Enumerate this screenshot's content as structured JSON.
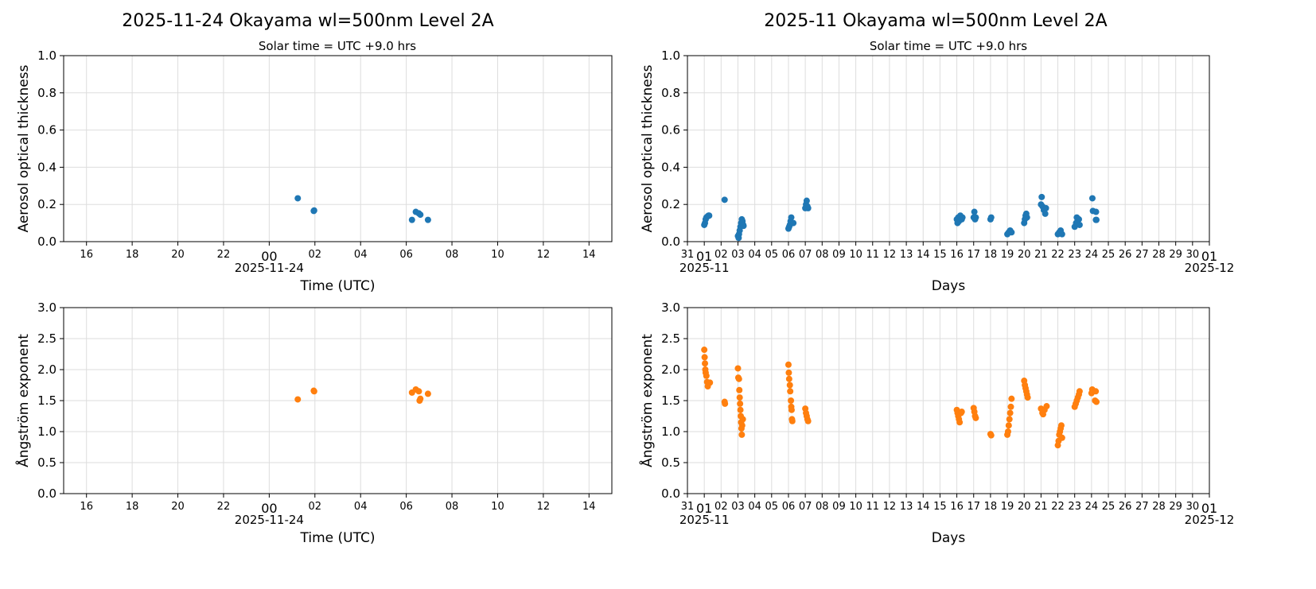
{
  "colors": {
    "aod": "#1f77b4",
    "angstrom": "#ff7f0e",
    "grid": "#dddddd"
  },
  "chart_data": [
    {
      "type": "scatter",
      "title": "2025-11-24  Okayama  wl=500nm  Level 2A",
      "subtitle": "Solar time = UTC +9.0 hrs",
      "xlabel": "Time (UTC)",
      "ylabel": "Aerosol optical thickness",
      "xlim": [
        "2025-11-23T15:00",
        "2025-11-24T15:00"
      ],
      "ylim": [
        0,
        1.0
      ],
      "yticks": [
        "0.0",
        "0.2",
        "0.4",
        "0.6",
        "0.8",
        "1.0"
      ],
      "xticks": [
        "16",
        "18",
        "20",
        "22",
        "00",
        "02",
        "04",
        "06",
        "08",
        "10",
        "12",
        "14"
      ],
      "xdate_label": "2025-11-24",
      "grid": true,
      "color": "#1f77b4",
      "points": [
        [
          "2025-11-24T01:15",
          0.233
        ],
        [
          "2025-11-24T01:57",
          0.165
        ],
        [
          "2025-11-24T01:58",
          0.168
        ],
        [
          "2025-11-24T06:15",
          0.117
        ],
        [
          "2025-11-24T06:25",
          0.16
        ],
        [
          "2025-11-24T06:33",
          0.152
        ],
        [
          "2025-11-24T06:37",
          0.145
        ],
        [
          "2025-11-24T06:57",
          0.117
        ]
      ]
    },
    {
      "type": "scatter",
      "title": "2025-11  Okayama  wl=500nm  Level 2A",
      "subtitle": "Solar time = UTC +9.0 hrs",
      "xlabel": "Days",
      "ylabel": "Aerosol optical thickness",
      "xlim": [
        "2025-10-31T00:00",
        "2025-12-01T00:00"
      ],
      "ylim": [
        0,
        1.0
      ],
      "yticks": [
        "0.0",
        "0.2",
        "0.4",
        "0.6",
        "0.8",
        "1.0"
      ],
      "xticks": [
        "31",
        "01",
        "02",
        "03",
        "04",
        "05",
        "06",
        "07",
        "08",
        "09",
        "10",
        "11",
        "12",
        "13",
        "14",
        "15",
        "16",
        "17",
        "18",
        "19",
        "20",
        "21",
        "22",
        "23",
        "24",
        "25",
        "26",
        "27",
        "28",
        "29",
        "30",
        "01"
      ],
      "xmonth_labels": [
        "2025-11",
        "2025-12"
      ],
      "grid": true,
      "color": "#1f77b4",
      "points": [
        [
          "2025-11-01T00:00",
          0.09
        ],
        [
          "2025-11-01T01:00",
          0.1
        ],
        [
          "2025-11-01T02:00",
          0.12
        ],
        [
          "2025-11-01T03:00",
          0.13
        ],
        [
          "2025-11-01T04:30",
          0.135
        ],
        [
          "2025-11-01T06:00",
          0.14
        ],
        [
          "2025-11-01T07:00",
          0.14
        ],
        [
          "2025-11-02T05:00",
          0.225
        ],
        [
          "2025-11-03T00:00",
          0.03
        ],
        [
          "2025-11-03T01:00",
          0.02
        ],
        [
          "2025-11-03T01:30",
          0.04
        ],
        [
          "2025-11-03T02:30",
          0.06
        ],
        [
          "2025-11-03T03:30",
          0.08
        ],
        [
          "2025-11-03T04:30",
          0.1
        ],
        [
          "2025-11-03T05:30",
          0.12
        ],
        [
          "2025-11-03T06:30",
          0.11
        ],
        [
          "2025-11-03T07:30",
          0.09
        ],
        [
          "2025-11-03T08:00",
          0.085
        ],
        [
          "2025-11-06T00:00",
          0.07
        ],
        [
          "2025-11-06T01:00",
          0.08
        ],
        [
          "2025-11-06T02:00",
          0.09
        ],
        [
          "2025-11-06T03:00",
          0.11
        ],
        [
          "2025-11-06T04:00",
          0.13
        ],
        [
          "2025-11-06T05:00",
          0.1
        ],
        [
          "2025-11-06T07:00",
          0.1
        ],
        [
          "2025-11-07T00:00",
          0.18
        ],
        [
          "2025-11-07T01:00",
          0.2
        ],
        [
          "2025-11-07T02:00",
          0.22
        ],
        [
          "2025-11-07T03:00",
          0.19
        ],
        [
          "2025-11-07T04:00",
          0.18
        ],
        [
          "2025-11-16T00:00",
          0.12
        ],
        [
          "2025-11-16T01:00",
          0.1
        ],
        [
          "2025-11-16T02:00",
          0.13
        ],
        [
          "2025-11-16T03:00",
          0.11
        ],
        [
          "2025-11-16T05:00",
          0.14
        ],
        [
          "2025-11-16T07:00",
          0.12
        ],
        [
          "2025-11-16T08:00",
          0.13
        ],
        [
          "2025-11-17T00:00",
          0.13
        ],
        [
          "2025-11-17T01:00",
          0.16
        ],
        [
          "2025-11-17T02:00",
          0.12
        ],
        [
          "2025-11-17T03:00",
          0.13
        ],
        [
          "2025-11-18T00:00",
          0.12
        ],
        [
          "2025-11-18T01:00",
          0.13
        ],
        [
          "2025-11-19T00:00",
          0.04
        ],
        [
          "2025-11-19T02:00",
          0.05
        ],
        [
          "2025-11-19T04:00",
          0.06
        ],
        [
          "2025-11-19T06:00",
          0.05
        ],
        [
          "2025-11-20T00:00",
          0.1
        ],
        [
          "2025-11-20T01:00",
          0.12
        ],
        [
          "2025-11-20T02:00",
          0.14
        ],
        [
          "2025-11-20T03:00",
          0.15
        ],
        [
          "2025-11-20T04:00",
          0.13
        ],
        [
          "2025-11-21T00:00",
          0.2
        ],
        [
          "2025-11-21T01:00",
          0.24
        ],
        [
          "2025-11-21T02:00",
          0.19
        ],
        [
          "2025-11-21T04:00",
          0.17
        ],
        [
          "2025-11-21T06:00",
          0.15
        ],
        [
          "2025-11-21T07:00",
          0.18
        ],
        [
          "2025-11-22T00:00",
          0.04
        ],
        [
          "2025-11-22T02:00",
          0.05
        ],
        [
          "2025-11-22T04:00",
          0.06
        ],
        [
          "2025-11-22T06:00",
          0.04
        ],
        [
          "2025-11-23T00:00",
          0.08
        ],
        [
          "2025-11-23T02:00",
          0.1
        ],
        [
          "2025-11-23T03:00",
          0.13
        ],
        [
          "2025-11-23T04:00",
          0.11
        ],
        [
          "2025-11-23T06:00",
          0.12
        ],
        [
          "2025-11-23T07:00",
          0.09
        ],
        [
          "2025-11-24T01:15",
          0.233
        ],
        [
          "2025-11-24T01:57",
          0.165
        ],
        [
          "2025-11-24T06:15",
          0.117
        ],
        [
          "2025-11-24T06:25",
          0.16
        ],
        [
          "2025-11-24T06:57",
          0.117
        ]
      ]
    },
    {
      "type": "scatter",
      "xlabel": "Time (UTC)",
      "ylabel": "Ångström exponent",
      "xlim": [
        "2025-11-23T15:00",
        "2025-11-24T15:00"
      ],
      "ylim": [
        0,
        3.0
      ],
      "yticks": [
        "0.0",
        "0.5",
        "1.0",
        "1.5",
        "2.0",
        "2.5",
        "3.0"
      ],
      "xticks": [
        "16",
        "18",
        "20",
        "22",
        "00",
        "02",
        "04",
        "06",
        "08",
        "10",
        "12",
        "14"
      ],
      "xdate_label": "2025-11-24",
      "grid": true,
      "color": "#ff7f0e",
      "points": [
        [
          "2025-11-24T01:15",
          1.52
        ],
        [
          "2025-11-24T01:57",
          1.66
        ],
        [
          "2025-11-24T01:58",
          1.65
        ],
        [
          "2025-11-24T06:15",
          1.63
        ],
        [
          "2025-11-24T06:25",
          1.68
        ],
        [
          "2025-11-24T06:33",
          1.65
        ],
        [
          "2025-11-24T06:35",
          1.5
        ],
        [
          "2025-11-24T06:37",
          1.53
        ],
        [
          "2025-11-24T06:57",
          1.61
        ]
      ]
    },
    {
      "type": "scatter",
      "xlabel": "Days",
      "ylabel": "Ångström exponent",
      "xlim": [
        "2025-10-31T00:00",
        "2025-12-01T00:00"
      ],
      "ylim": [
        0,
        3.0
      ],
      "yticks": [
        "0.0",
        "0.5",
        "1.0",
        "1.5",
        "2.0",
        "2.5",
        "3.0"
      ],
      "xticks": [
        "31",
        "01",
        "02",
        "03",
        "04",
        "05",
        "06",
        "07",
        "08",
        "09",
        "10",
        "11",
        "12",
        "13",
        "14",
        "15",
        "16",
        "17",
        "18",
        "19",
        "20",
        "21",
        "22",
        "23",
        "24",
        "25",
        "26",
        "27",
        "28",
        "29",
        "30",
        "01"
      ],
      "xmonth_labels": [
        "2025-11",
        "2025-12"
      ],
      "grid": true,
      "color": "#ff7f0e",
      "points": [
        [
          "2025-11-01T00:00",
          2.32
        ],
        [
          "2025-11-01T00:30",
          2.2
        ],
        [
          "2025-11-01T01:00",
          2.1
        ],
        [
          "2025-11-01T01:30",
          2.0
        ],
        [
          "2025-11-01T02:00",
          1.95
        ],
        [
          "2025-11-01T03:00",
          1.9
        ],
        [
          "2025-11-01T04:00",
          1.8
        ],
        [
          "2025-11-01T05:00",
          1.73
        ],
        [
          "2025-11-01T08:00",
          1.79
        ],
        [
          "2025-11-02T05:00",
          1.48
        ],
        [
          "2025-11-02T05:30",
          1.45
        ],
        [
          "2025-11-03T00:00",
          2.02
        ],
        [
          "2025-11-03T00:30",
          1.87
        ],
        [
          "2025-11-03T01:30",
          1.85
        ],
        [
          "2025-11-03T02:00",
          1.67
        ],
        [
          "2025-11-03T02:30",
          1.55
        ],
        [
          "2025-11-03T03:00",
          1.45
        ],
        [
          "2025-11-03T03:30",
          1.35
        ],
        [
          "2025-11-03T04:00",
          1.25
        ],
        [
          "2025-11-03T04:30",
          1.15
        ],
        [
          "2025-11-03T05:00",
          1.05
        ],
        [
          "2025-11-03T05:30",
          0.95
        ],
        [
          "2025-11-03T07:00",
          1.2
        ],
        [
          "2025-11-03T06:00",
          1.1
        ],
        [
          "2025-11-06T00:00",
          2.08
        ],
        [
          "2025-11-06T00:30",
          1.95
        ],
        [
          "2025-11-06T01:00",
          1.85
        ],
        [
          "2025-11-06T02:00",
          1.75
        ],
        [
          "2025-11-06T02:30",
          1.65
        ],
        [
          "2025-11-06T03:30",
          1.5
        ],
        [
          "2025-11-06T04:00",
          1.4
        ],
        [
          "2025-11-06T04:30",
          1.35
        ],
        [
          "2025-11-06T05:00",
          1.2
        ],
        [
          "2025-11-06T05:30",
          1.17
        ],
        [
          "2025-11-07T00:00",
          1.37
        ],
        [
          "2025-11-07T01:00",
          1.3
        ],
        [
          "2025-11-07T02:00",
          1.25
        ],
        [
          "2025-11-07T03:00",
          1.2
        ],
        [
          "2025-11-07T04:00",
          1.17
        ],
        [
          "2025-11-16T00:00",
          1.35
        ],
        [
          "2025-11-16T01:00",
          1.3
        ],
        [
          "2025-11-16T02:00",
          1.25
        ],
        [
          "2025-11-16T03:00",
          1.2
        ],
        [
          "2025-11-16T04:00",
          1.15
        ],
        [
          "2025-11-16T06:00",
          1.3
        ],
        [
          "2025-11-16T07:00",
          1.32
        ],
        [
          "2025-11-17T00:00",
          1.38
        ],
        [
          "2025-11-17T01:00",
          1.32
        ],
        [
          "2025-11-17T02:00",
          1.25
        ],
        [
          "2025-11-17T03:00",
          1.22
        ],
        [
          "2025-11-18T00:00",
          0.96
        ],
        [
          "2025-11-18T01:00",
          0.94
        ],
        [
          "2025-11-19T00:00",
          0.95
        ],
        [
          "2025-11-19T01:00",
          1.0
        ],
        [
          "2025-11-19T02:00",
          1.1
        ],
        [
          "2025-11-19T03:00",
          1.2
        ],
        [
          "2025-11-19T04:00",
          1.3
        ],
        [
          "2025-11-19T05:00",
          1.4
        ],
        [
          "2025-11-19T06:00",
          1.53
        ],
        [
          "2025-11-20T00:00",
          1.82
        ],
        [
          "2025-11-20T01:00",
          1.75
        ],
        [
          "2025-11-20T02:00",
          1.7
        ],
        [
          "2025-11-20T03:00",
          1.65
        ],
        [
          "2025-11-20T04:00",
          1.6
        ],
        [
          "2025-11-20T05:00",
          1.55
        ],
        [
          "2025-11-21T00:00",
          1.37
        ],
        [
          "2025-11-21T02:00",
          1.3
        ],
        [
          "2025-11-21T03:00",
          1.28
        ],
        [
          "2025-11-21T05:00",
          1.35
        ],
        [
          "2025-11-21T08:00",
          1.41
        ],
        [
          "2025-11-22T00:00",
          0.78
        ],
        [
          "2025-11-22T01:00",
          0.85
        ],
        [
          "2025-11-22T02:00",
          0.95
        ],
        [
          "2025-11-22T03:00",
          1.0
        ],
        [
          "2025-11-22T04:00",
          1.05
        ],
        [
          "2025-11-22T05:00",
          1.1
        ],
        [
          "2025-11-22T06:00",
          0.9
        ],
        [
          "2025-11-23T00:00",
          1.4
        ],
        [
          "2025-11-23T01:30",
          1.45
        ],
        [
          "2025-11-23T03:00",
          1.5
        ],
        [
          "2025-11-23T04:30",
          1.55
        ],
        [
          "2025-11-23T06:00",
          1.6
        ],
        [
          "2025-11-23T07:00",
          1.65
        ],
        [
          "2025-11-24T00:00",
          1.62
        ],
        [
          "2025-11-24T01:00",
          1.68
        ],
        [
          "2025-11-24T05:00",
          1.5
        ],
        [
          "2025-11-24T06:00",
          1.65
        ],
        [
          "2025-11-24T07:00",
          1.48
        ]
      ]
    }
  ]
}
